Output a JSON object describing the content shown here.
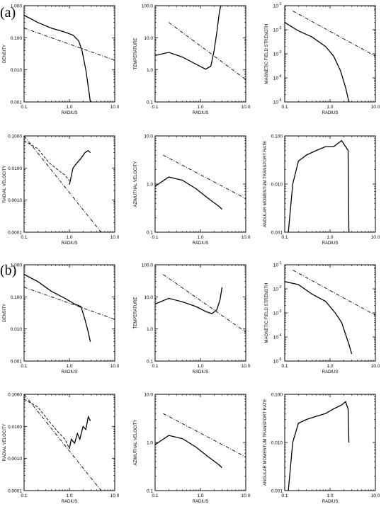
{
  "panel_labels": [
    "(a)",
    "(b)"
  ],
  "chart_data": [
    {
      "type": "line",
      "group": "a",
      "ylabel": "DENSITY",
      "xlabel": "RADIUS",
      "log": true,
      "xlim": [
        0.1,
        10.0
      ],
      "ylim": [
        0.001,
        1.0
      ],
      "xticks": [
        0.1,
        1.0,
        10.0
      ],
      "xticklabels": [
        "0.1",
        "1.0",
        "10.0"
      ],
      "yticks": [
        0.001,
        0.01,
        0.1,
        1.0
      ],
      "yticklabels": [
        "0.001",
        "0.010",
        "0.100",
        "1.000"
      ],
      "series": [
        {
          "style": "solid",
          "x": [
            0.1,
            0.2,
            0.4,
            0.8,
            1.2,
            1.6,
            1.9,
            2.3,
            2.6,
            2.9
          ],
          "y": [
            0.5,
            0.3,
            0.2,
            0.15,
            0.12,
            0.08,
            0.04,
            0.01,
            0.003,
            0.001
          ]
        },
        {
          "style": "dashdot",
          "x": [
            0.1,
            10.0
          ],
          "y": [
            0.2,
            0.02
          ]
        }
      ]
    },
    {
      "type": "line",
      "group": "a",
      "ylabel": "TEMPERATURE",
      "xlabel": "RADIUS",
      "log": true,
      "xlim": [
        0.1,
        10.0
      ],
      "ylim": [
        0.1,
        100.0
      ],
      "xticks": [
        0.1,
        1.0,
        10.0
      ],
      "xticklabels": [
        "0.1",
        "1.0",
        "10.0"
      ],
      "yticks": [
        0.1,
        1.0,
        10.0,
        100.0
      ],
      "yticklabels": [
        "0.1",
        "1.0",
        "10.0",
        "100.0"
      ],
      "series": [
        {
          "style": "solid",
          "x": [
            0.1,
            0.2,
            0.4,
            0.8,
            1.3,
            1.7,
            2.0,
            2.3,
            2.6,
            2.8
          ],
          "y": [
            2.8,
            3.5,
            2.5,
            1.5,
            1.05,
            1.3,
            4.0,
            15.0,
            60.0,
            100.0
          ]
        },
        {
          "style": "dashdot",
          "x": [
            0.2,
            10.0
          ],
          "y": [
            30.0,
            0.5
          ]
        }
      ]
    },
    {
      "type": "line",
      "group": "a",
      "ylabel": "MAGNETIC FIELD STRENGTH",
      "xlabel": "RADIUS",
      "log": true,
      "xlim": [
        0.1,
        10.0
      ],
      "ylim": [
        1e-05,
        0.1
      ],
      "xticks": [
        0.1,
        1.0,
        10.0
      ],
      "xticklabels": [
        "0.1",
        "1.0",
        "10.0"
      ],
      "yticks": [
        1e-05,
        0.0001,
        0.001,
        0.01,
        0.1
      ],
      "yticklabels": [
        "10",
        "10",
        "10",
        "10",
        "10"
      ],
      "yticksup": [
        "-5",
        "-4",
        "-3",
        "-2",
        "-1"
      ],
      "series": [
        {
          "style": "solid",
          "x": [
            0.1,
            0.2,
            0.4,
            0.8,
            1.2,
            1.7,
            2.2,
            2.6,
            2.8
          ],
          "y": [
            0.02,
            0.009,
            0.005,
            0.002,
            0.0008,
            0.0002,
            4e-05,
            1e-05,
            1e-05
          ]
        },
        {
          "style": "dashdot",
          "x": [
            0.15,
            10.0
          ],
          "y": [
            0.06,
            0.0008
          ]
        }
      ]
    },
    {
      "type": "line",
      "group": "a",
      "ylabel": "RADIAL VELOCITY",
      "xlabel": "RADIUS",
      "log": true,
      "xlim": [
        0.1,
        10.0
      ],
      "ylim": [
        0.0001,
        0.1
      ],
      "xticks": [
        0.1,
        1.0,
        10.0
      ],
      "xticklabels": [
        "0.1",
        "1.0",
        "10.0"
      ],
      "yticks": [
        0.0001,
        0.001,
        0.01,
        0.1
      ],
      "yticklabels": [
        "0.0001",
        "0.0010",
        "0.0100",
        "0.1000"
      ],
      "series": [
        {
          "style": "dashed",
          "x": [
            0.1,
            0.2,
            0.35,
            0.6,
            0.8,
            1.0
          ],
          "y": [
            0.07,
            0.04,
            0.015,
            0.008,
            0.006,
            0.004
          ]
        },
        {
          "style": "solid",
          "x": [
            1.0,
            1.2,
            1.5,
            1.8,
            2.2,
            2.6,
            2.9
          ],
          "y": [
            0.003,
            0.01,
            0.015,
            0.02,
            0.03,
            0.035,
            0.03
          ]
        },
        {
          "style": "dashdot",
          "x": [
            0.1,
            5.0
          ],
          "y": [
            0.1,
            0.0001
          ]
        }
      ]
    },
    {
      "type": "line",
      "group": "a",
      "ylabel": "AZIMUTHAL VELOCITY",
      "xlabel": "RADIUS",
      "log": true,
      "xlim": [
        0.1,
        10.0
      ],
      "ylim": [
        0.1,
        10.0
      ],
      "xticks": [
        0.1,
        1.0,
        10.0
      ],
      "xticklabels": [
        "0.1",
        "1.0",
        "10.0"
      ],
      "yticks": [
        0.1,
        1.0,
        10.0
      ],
      "yticklabels": [
        "0.1",
        "1.0",
        "10.0"
      ],
      "series": [
        {
          "style": "solid",
          "x": [
            0.1,
            0.2,
            0.4,
            0.8,
            1.5,
            2.5,
            3.0
          ],
          "y": [
            0.9,
            1.4,
            1.2,
            0.8,
            0.5,
            0.35,
            0.3
          ]
        },
        {
          "style": "dashdot",
          "x": [
            0.15,
            10.0
          ],
          "y": [
            4.0,
            0.5
          ]
        }
      ]
    },
    {
      "type": "line",
      "group": "a",
      "ylabel": "ANGULAR MOMENTUM TRANSPORT RATE",
      "xlabel": "RADIUS",
      "log": true,
      "xlim": [
        0.1,
        10.0
      ],
      "ylim": [
        0.001,
        0.1
      ],
      "xticks": [
        0.1,
        1.0,
        10.0
      ],
      "xticklabels": [
        "0.1",
        "1.0",
        "10.0"
      ],
      "yticks": [
        0.001,
        0.01,
        0.1
      ],
      "yticklabels": [
        "0.001",
        "0.010",
        "0.100"
      ],
      "series": [
        {
          "style": "solid",
          "x": [
            0.12,
            0.15,
            0.2,
            0.3,
            0.5,
            0.8,
            1.2,
            1.8,
            2.2,
            2.5,
            2.6
          ],
          "y": [
            0.001,
            0.01,
            0.03,
            0.04,
            0.05,
            0.06,
            0.06,
            0.08,
            0.06,
            0.05,
            0.001
          ]
        }
      ]
    },
    {
      "type": "line",
      "group": "b",
      "ylabel": "DENSITY",
      "xlabel": "RADIUS",
      "log": true,
      "xlim": [
        0.1,
        10.0
      ],
      "ylim": [
        0.001,
        1.0
      ],
      "xticks": [
        0.1,
        1.0,
        10.0
      ],
      "xticklabels": [
        "0.1",
        "1.0",
        "10.0"
      ],
      "yticks": [
        0.001,
        0.01,
        0.1,
        1.0
      ],
      "yticklabels": [
        "0.001",
        "0.010",
        "0.100",
        "1.000"
      ],
      "series": [
        {
          "style": "solid",
          "x": [
            0.1,
            0.2,
            0.4,
            0.8,
            1.3,
            1.8,
            2.2,
            2.6,
            2.9
          ],
          "y": [
            0.5,
            0.3,
            0.15,
            0.09,
            0.06,
            0.05,
            0.02,
            0.008,
            0.004
          ]
        },
        {
          "style": "dashdot",
          "x": [
            0.1,
            10.0
          ],
          "y": [
            0.2,
            0.02
          ]
        }
      ]
    },
    {
      "type": "line",
      "group": "b",
      "ylabel": "TEMPERATURE",
      "xlabel": "RADIUS",
      "log": true,
      "xlim": [
        0.1,
        10.0
      ],
      "ylim": [
        0.1,
        100.0
      ],
      "xticks": [
        0.1,
        1.0,
        10.0
      ],
      "xticklabels": [
        "0.1",
        "1.0",
        "10.0"
      ],
      "yticks": [
        0.1,
        1.0,
        10.0,
        100.0
      ],
      "yticklabels": [
        "0.1",
        "1.0",
        "10.0",
        "100.0"
      ],
      "series": [
        {
          "style": "solid",
          "x": [
            0.1,
            0.2,
            0.4,
            0.8,
            1.3,
            1.8,
            2.3,
            2.7,
            3.0
          ],
          "y": [
            6.0,
            9.0,
            7.0,
            5.0,
            3.5,
            3.0,
            4.0,
            8.0,
            20.0
          ]
        },
        {
          "style": "dashdot",
          "x": [
            0.15,
            10.0
          ],
          "y": [
            50.0,
            0.8
          ]
        }
      ]
    },
    {
      "type": "line",
      "group": "b",
      "ylabel": "MAGNETIC FIELD STRENGTH",
      "xlabel": "RADIUS",
      "log": true,
      "xlim": [
        0.1,
        10.0
      ],
      "ylim": [
        1e-05,
        0.1
      ],
      "xticks": [
        0.1,
        1.0,
        10.0
      ],
      "xticklabels": [
        "0.1",
        "1.0",
        "10.0"
      ],
      "yticks": [
        1e-05,
        0.0001,
        0.001,
        0.01,
        0.1
      ],
      "yticklabels": [
        "10",
        "10",
        "10",
        "10",
        "10"
      ],
      "yticksup": [
        "-5",
        "-4",
        "-3",
        "-2",
        "-1"
      ],
      "series": [
        {
          "style": "solid",
          "x": [
            0.1,
            0.2,
            0.4,
            0.8,
            1.3,
            1.8,
            2.3,
            2.7,
            3.0
          ],
          "y": [
            0.02,
            0.015,
            0.006,
            0.003,
            0.001,
            0.0004,
            0.0001,
            4e-05,
            2e-05
          ]
        },
        {
          "style": "dashdot",
          "x": [
            0.15,
            10.0
          ],
          "y": [
            0.06,
            0.0008
          ]
        }
      ]
    },
    {
      "type": "line",
      "group": "b",
      "ylabel": "RADIAL VELOCITY",
      "xlabel": "RADIUS",
      "log": true,
      "xlim": [
        0.1,
        10.0
      ],
      "ylim": [
        0.0001,
        0.1
      ],
      "xticks": [
        0.1,
        1.0,
        10.0
      ],
      "xticklabels": [
        "0.1",
        "1.0",
        "10.0"
      ],
      "yticks": [
        0.0001,
        0.001,
        0.01,
        0.1
      ],
      "yticklabels": [
        "0.0001",
        "0.0010",
        "0.0100",
        "0.1000"
      ],
      "series": [
        {
          "style": "dashed",
          "x": [
            0.1,
            0.2,
            0.35,
            0.6,
            0.8,
            1.0
          ],
          "y": [
            0.07,
            0.04,
            0.015,
            0.006,
            0.004,
            0.002
          ]
        },
        {
          "style": "solid",
          "x": [
            1.0,
            1.1,
            1.3,
            1.5,
            1.7,
            2.0,
            2.3,
            2.6,
            2.9
          ],
          "y": [
            0.002,
            0.004,
            0.003,
            0.006,
            0.004,
            0.01,
            0.008,
            0.02,
            0.015
          ]
        },
        {
          "style": "dashdot",
          "x": [
            0.1,
            5.0
          ],
          "y": [
            0.1,
            0.0001
          ]
        }
      ]
    },
    {
      "type": "line",
      "group": "b",
      "ylabel": "AZIMUTHAL VELOCITY",
      "xlabel": "RADIUS",
      "log": true,
      "xlim": [
        0.1,
        10.0
      ],
      "ylim": [
        0.1,
        10.0
      ],
      "xticks": [
        0.1,
        1.0,
        10.0
      ],
      "xticklabels": [
        "0.1",
        "1.0",
        "10.0"
      ],
      "yticks": [
        0.1,
        1.0,
        10.0
      ],
      "yticklabels": [
        "0.1",
        "1.0",
        "10.0"
      ],
      "series": [
        {
          "style": "solid",
          "x": [
            0.1,
            0.2,
            0.4,
            0.8,
            1.5,
            2.5,
            3.0
          ],
          "y": [
            0.9,
            1.4,
            1.2,
            0.8,
            0.5,
            0.35,
            0.3
          ]
        },
        {
          "style": "dashdot",
          "x": [
            0.15,
            10.0
          ],
          "y": [
            4.0,
            0.5
          ]
        }
      ]
    },
    {
      "type": "line",
      "group": "b",
      "ylabel": "ANGULAR MOMENTUM TRANSPORT RATE",
      "xlabel": "RADIUS",
      "log": true,
      "xlim": [
        0.1,
        10.0
      ],
      "ylim": [
        0.001,
        0.1
      ],
      "xticks": [
        0.1,
        1.0,
        10.0
      ],
      "xticklabels": [
        "0.1",
        "1.0",
        "10.0"
      ],
      "yticks": [
        0.001,
        0.01,
        0.1
      ],
      "yticklabels": [
        "0.001",
        "0.010",
        "0.100"
      ],
      "series": [
        {
          "style": "solid",
          "x": [
            0.12,
            0.15,
            0.2,
            0.3,
            0.5,
            0.8,
            1.2,
            1.8,
            2.2,
            2.5,
            2.6
          ],
          "y": [
            0.001,
            0.01,
            0.025,
            0.03,
            0.035,
            0.04,
            0.05,
            0.06,
            0.07,
            0.05,
            0.01
          ]
        }
      ]
    }
  ]
}
